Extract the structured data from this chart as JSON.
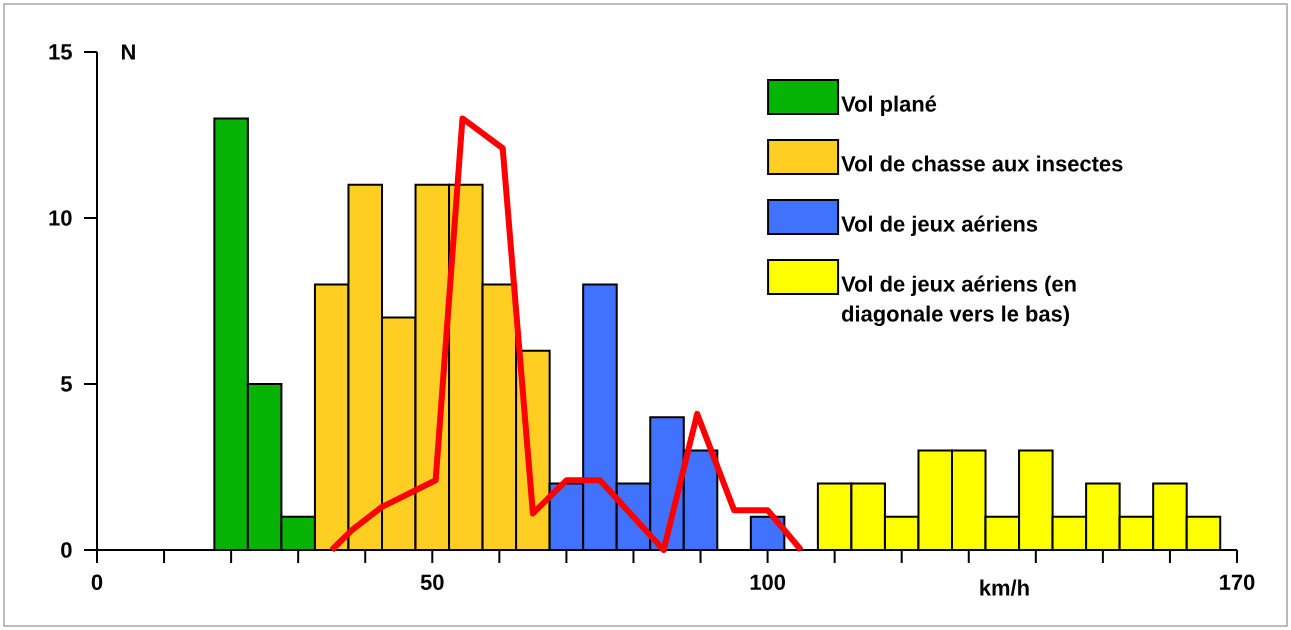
{
  "chart_data": {
    "type": "histogram",
    "xlabel": "km/h",
    "ylabel": "N",
    "xlim": [
      0,
      170
    ],
    "ylim": [
      0,
      15
    ],
    "xticks": [
      0,
      {
        "value": 10,
        "label": null
      },
      {
        "value": 20,
        "label": null
      },
      {
        "value": 30,
        "label": null
      },
      {
        "value": 40,
        "label": null
      },
      50,
      {
        "value": 60,
        "label": null
      },
      {
        "value": 70,
        "label": null
      },
      {
        "value": 80,
        "label": null
      },
      {
        "value": 90,
        "label": null
      },
      100,
      {
        "value": 110,
        "label": null
      },
      {
        "value": 120,
        "label": null
      },
      {
        "value": 130,
        "label": null
      },
      {
        "value": 140,
        "label": null
      },
      {
        "value": 150,
        "label": null
      },
      {
        "value": 160,
        "label": null
      },
      170
    ],
    "yticks": [
      0,
      5,
      10,
      15
    ],
    "legend": "top right",
    "grid": false,
    "series": [
      {
        "name": "Vol plané",
        "color": "#05b405",
        "bins": [
          17.5,
          22.5,
          27.5,
          32.5
        ],
        "values": [
          13,
          5,
          1
        ]
      },
      {
        "name": "Vol de chasse aux insectes",
        "color": "#fecf22",
        "bins": [
          32.5,
          37.5,
          42.5,
          47.5,
          52.5,
          57.5,
          62.5,
          67.5
        ],
        "values": [
          8,
          11,
          7,
          11,
          11,
          8,
          6
        ]
      },
      {
        "name": "Vol de jeux aériens",
        "color": "#4072fe",
        "bins": [
          67.5,
          72.5,
          77.5,
          82.5,
          87.5,
          92.5,
          97.5,
          102.5
        ],
        "values": [
          2,
          8,
          2,
          4,
          3,
          null,
          1
        ]
      },
      {
        "name": "Vol de jeux aériens (en diagonale vers le bas)",
        "color": "#ffff00",
        "bins": [
          107.5,
          112.5,
          117.5,
          122.5,
          127.5,
          132.5,
          137.5,
          142.5,
          147.5,
          152.5,
          157.5,
          162.5,
          167.5
        ],
        "values": [
          2,
          2,
          1,
          3,
          3,
          1,
          3,
          1,
          2,
          1,
          2,
          1
        ]
      },
      {
        "type": "line",
        "color": "#ff0000",
        "marker": "none",
        "line_style": "solid",
        "x": [
          35,
          38,
          42.5,
          50.5,
          54.5,
          60.5,
          65,
          70,
          75,
          84.5,
          89.5,
          95,
          100,
          105
        ],
        "values": [
          0,
          0.6,
          1.3,
          2.1,
          13,
          12.1,
          1.1,
          2.1,
          2.1,
          0,
          4.1,
          1.2,
          1.2,
          0
        ]
      }
    ]
  }
}
